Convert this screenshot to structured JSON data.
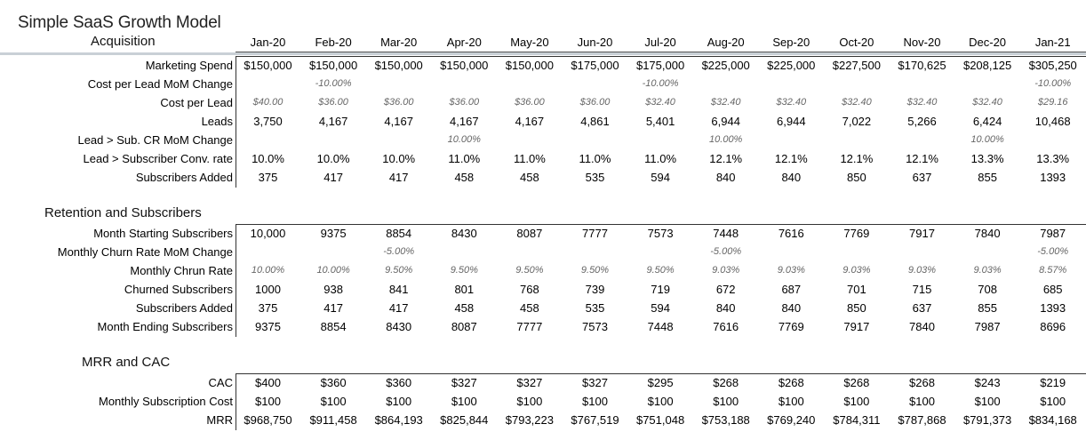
{
  "title": "Simple SaaS Growth Model",
  "months": [
    "Jan-20",
    "Feb-20",
    "Mar-20",
    "Apr-20",
    "May-20",
    "Jun-20",
    "Jul-20",
    "Aug-20",
    "Sep-20",
    "Oct-20",
    "Nov-20",
    "Dec-20",
    "Jan-21"
  ],
  "sections": [
    {
      "name": "Acquisition",
      "rows": [
        {
          "label": "Marketing Spend",
          "style": "normal",
          "values": [
            "$150,000",
            "$150,000",
            "$150,000",
            "$150,000",
            "$150,000",
            "$175,000",
            "$175,000",
            "$225,000",
            "$225,000",
            "$227,500",
            "$170,625",
            "$208,125",
            "$305,250"
          ]
        },
        {
          "label": "Cost per Lead MoM Change",
          "style": "italic",
          "values": [
            "",
            "-10.00%",
            "",
            "",
            "",
            "",
            "-10.00%",
            "",
            "",
            "",
            "",
            "",
            "-10.00%"
          ]
        },
        {
          "label": "Cost per Lead",
          "style": "italic",
          "values": [
            "$40.00",
            "$36.00",
            "$36.00",
            "$36.00",
            "$36.00",
            "$36.00",
            "$32.40",
            "$32.40",
            "$32.40",
            "$32.40",
            "$32.40",
            "$32.40",
            "$29.16"
          ]
        },
        {
          "label": "Leads",
          "style": "normal",
          "values": [
            "3,750",
            "4,167",
            "4,167",
            "4,167",
            "4,167",
            "4,861",
            "5,401",
            "6,944",
            "6,944",
            "7,022",
            "5,266",
            "6,424",
            "10,468"
          ]
        },
        {
          "label": "Lead > Sub. CR MoM Change",
          "style": "italic",
          "values": [
            "",
            "",
            "",
            "10.00%",
            "",
            "",
            "",
            "10.00%",
            "",
            "",
            "",
            "10.00%",
            ""
          ]
        },
        {
          "label": "Lead > Subscriber Conv. rate",
          "style": "normal",
          "values": [
            "10.0%",
            "10.0%",
            "10.0%",
            "11.0%",
            "11.0%",
            "11.0%",
            "11.0%",
            "12.1%",
            "12.1%",
            "12.1%",
            "12.1%",
            "13.3%",
            "13.3%"
          ]
        },
        {
          "label": "Subscribers Added",
          "style": "normal",
          "values": [
            "375",
            "417",
            "417",
            "458",
            "458",
            "535",
            "594",
            "840",
            "840",
            "850",
            "637",
            "855",
            "1393"
          ]
        }
      ]
    },
    {
      "name": "Retention and Subscribers",
      "rows": [
        {
          "label": "Month Starting Subscribers",
          "style": "normal",
          "values": [
            "10,000",
            "9375",
            "8854",
            "8430",
            "8087",
            "7777",
            "7573",
            "7448",
            "7616",
            "7769",
            "7917",
            "7840",
            "7987"
          ]
        },
        {
          "label": "Monthly Churn Rate MoM Change",
          "style": "italic",
          "values": [
            "",
            "",
            "-5.00%",
            "",
            "",
            "",
            "",
            "-5.00%",
            "",
            "",
            "",
            "",
            "-5.00%"
          ]
        },
        {
          "label": "Monthly Chrun Rate",
          "style": "italic",
          "values": [
            "10.00%",
            "10.00%",
            "9.50%",
            "9.50%",
            "9.50%",
            "9.50%",
            "9.50%",
            "9.03%",
            "9.03%",
            "9.03%",
            "9.03%",
            "9.03%",
            "8.57%"
          ]
        },
        {
          "label": "Churned Subscribers",
          "style": "normal",
          "values": [
            "1000",
            "938",
            "841",
            "801",
            "768",
            "739",
            "719",
            "672",
            "687",
            "701",
            "715",
            "708",
            "685"
          ]
        },
        {
          "label": "Subscribers Added",
          "style": "normal",
          "values": [
            "375",
            "417",
            "417",
            "458",
            "458",
            "535",
            "594",
            "840",
            "840",
            "850",
            "637",
            "855",
            "1393"
          ]
        },
        {
          "label": "Month Ending Subscribers",
          "style": "normal",
          "values": [
            "9375",
            "8854",
            "8430",
            "8087",
            "7777",
            "7573",
            "7448",
            "7616",
            "7769",
            "7917",
            "7840",
            "7987",
            "8696"
          ]
        }
      ]
    },
    {
      "name": "MRR and CAC",
      "rows": [
        {
          "label": "CAC",
          "style": "normal",
          "values": [
            "$400",
            "$360",
            "$360",
            "$327",
            "$327",
            "$327",
            "$295",
            "$268",
            "$268",
            "$268",
            "$268",
            "$243",
            "$219"
          ]
        },
        {
          "label": "Monthly Subscription Cost",
          "style": "normal",
          "values": [
            "$100",
            "$100",
            "$100",
            "$100",
            "$100",
            "$100",
            "$100",
            "$100",
            "$100",
            "$100",
            "$100",
            "$100",
            "$100"
          ]
        },
        {
          "label": "MRR",
          "style": "normal",
          "values": [
            "$968,750",
            "$911,458",
            "$864,193",
            "$825,844",
            "$793,223",
            "$767,519",
            "$751,048",
            "$753,188",
            "$769,240",
            "$784,311",
            "$787,868",
            "$791,373",
            "$834,168"
          ]
        }
      ]
    }
  ]
}
